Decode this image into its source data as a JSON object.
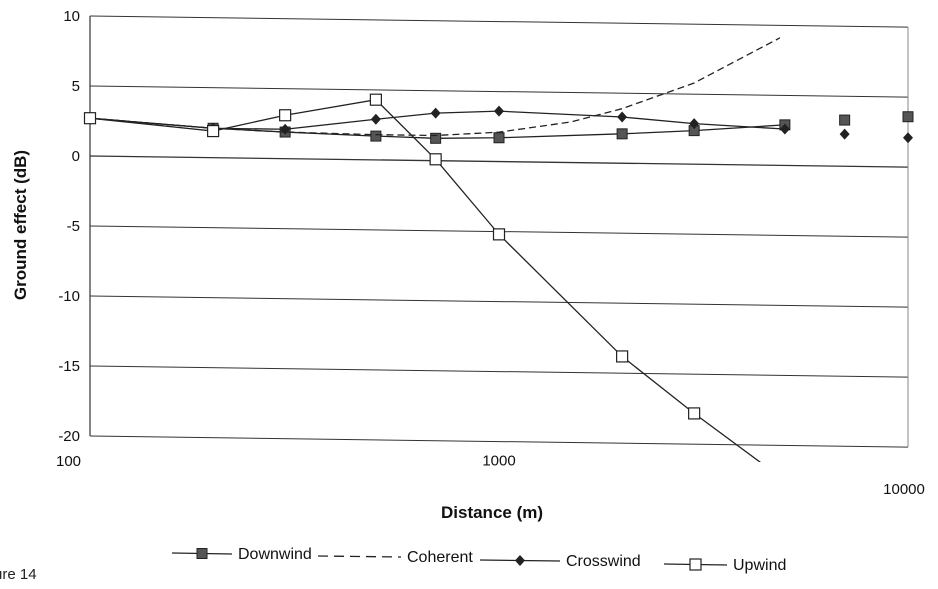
{
  "chart_data": {
    "type": "line",
    "xlabel": "Distance (m)",
    "ylabel": "Ground effect (dB)",
    "x_scale": "log",
    "xlim": [
      100,
      10000
    ],
    "ylim": [
      -20,
      10
    ],
    "grid": "horizontal",
    "legend_position": "bottom",
    "x_ticks": [
      {
        "value": 100,
        "label": "100"
      },
      {
        "value": 1000,
        "label": "1000"
      },
      {
        "value": 10000,
        "label": "10000"
      }
    ],
    "y_ticks": [
      {
        "value": 10,
        "label": "10"
      },
      {
        "value": 5,
        "label": "5"
      },
      {
        "value": 0,
        "label": "0"
      },
      {
        "value": -5,
        "label": "-5"
      },
      {
        "value": -10,
        "label": "-10"
      },
      {
        "value": -15,
        "label": "-15"
      },
      {
        "value": -20,
        "label": "-20"
      }
    ],
    "series": [
      {
        "name": "Downwind",
        "style": "solid",
        "marker": "square-filled",
        "x": [
          100,
          200,
          300,
          500,
          700,
          1000,
          2000,
          3000,
          5000,
          7000,
          10000
        ],
        "y": [
          2.7,
          2.1,
          1.9,
          1.7,
          1.6,
          1.7,
          2.1,
          2.4,
          2.9,
          3.3,
          3.6
        ]
      },
      {
        "name": "Coherent",
        "style": "dashed",
        "marker": "none",
        "x": [
          100,
          200,
          300,
          500,
          700,
          1000,
          1500,
          2000,
          3000,
          5000
        ],
        "y": [
          2.7,
          2.1,
          1.9,
          1.8,
          1.8,
          2.1,
          2.9,
          3.9,
          5.8,
          9.3
        ]
      },
      {
        "name": "Crosswind",
        "style": "solid",
        "marker": "diamond-filled",
        "x": [
          100,
          200,
          300,
          500,
          700,
          1000,
          2000,
          3000,
          5000,
          7000,
          10000
        ],
        "y": [
          2.7,
          2.1,
          2.1,
          2.9,
          3.4,
          3.6,
          3.3,
          2.9,
          2.6,
          2.3,
          2.1
        ]
      },
      {
        "name": "Upwind",
        "style": "solid",
        "marker": "square-open",
        "x": [
          100,
          200,
          300,
          500,
          700,
          1000,
          2000,
          3000,
          5000
        ],
        "y": [
          2.7,
          1.9,
          3.1,
          4.3,
          0.1,
          -5.2,
          -13.8,
          -17.8,
          -22.5
        ]
      }
    ]
  },
  "caption": "ure 14"
}
